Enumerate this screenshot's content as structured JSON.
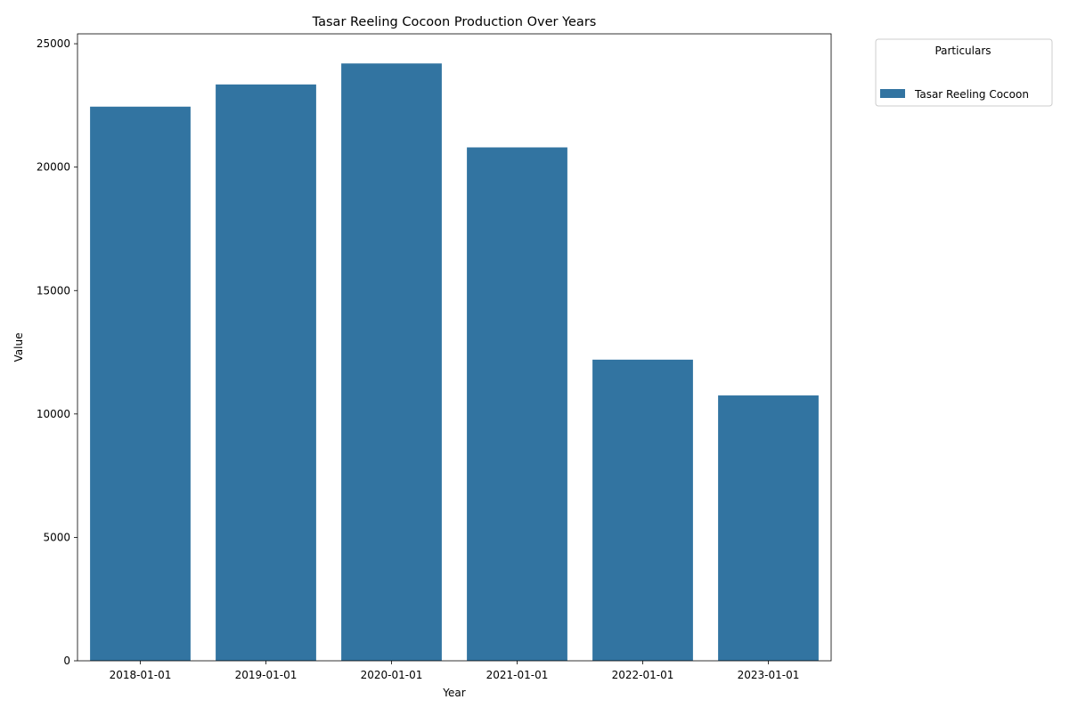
{
  "chart_data": {
    "type": "bar",
    "title": "Tasar Reeling Cocoon Production Over Years",
    "xlabel": "Year",
    "ylabel": "Value",
    "categories": [
      "2018-01-01",
      "2019-01-01",
      "2020-01-01",
      "2021-01-01",
      "2022-01-01",
      "2023-01-01"
    ],
    "series": [
      {
        "name": "Tasar Reeling Cocoon",
        "values": [
          22450,
          23350,
          24200,
          20800,
          12200,
          10750
        ]
      }
    ],
    "ylim": [
      0,
      25400
    ],
    "yticks": [
      0,
      5000,
      10000,
      15000,
      20000,
      25000
    ],
    "grid": false,
    "legend": {
      "title": "Particulars",
      "placement": "outside-top-right"
    },
    "colors": {
      "bar": "#3274a1"
    }
  }
}
